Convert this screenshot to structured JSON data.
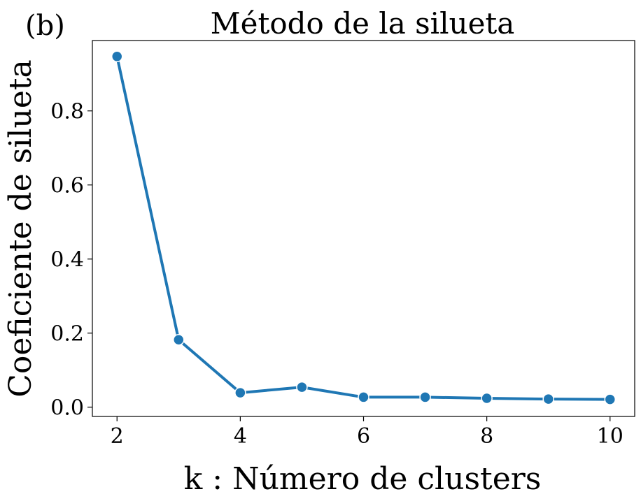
{
  "chart_data": {
    "type": "line",
    "panel_label": "(b)",
    "title": "Método de la silueta",
    "xlabel": "k : Número de clusters",
    "ylabel": "Coeficiente de silueta",
    "x": [
      2,
      3,
      4,
      5,
      6,
      7,
      8,
      9,
      10
    ],
    "series": [
      {
        "values": [
          0.947,
          0.182,
          0.039,
          0.054,
          0.027,
          0.027,
          0.024,
          0.022,
          0.021
        ]
      }
    ],
    "xticks": [
      2,
      4,
      6,
      8,
      10
    ],
    "xtick_labels": [
      "2",
      "4",
      "6",
      "8",
      "10"
    ],
    "yticks": [
      0.0,
      0.2,
      0.4,
      0.6,
      0.8
    ],
    "ytick_labels": [
      "0.0",
      "0.2",
      "0.4",
      "0.6",
      "0.8"
    ],
    "xlim": [
      1.6,
      10.4
    ],
    "ylim": [
      -0.025,
      0.99
    ],
    "grid": false,
    "line_color": "#1f77b4",
    "marker_edge_color": "#ffffff"
  }
}
